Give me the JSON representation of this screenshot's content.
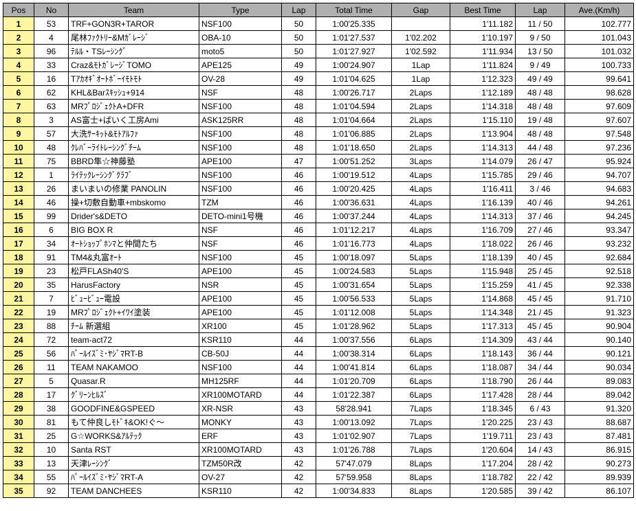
{
  "table": {
    "columns": [
      "Pos",
      "No",
      "Team",
      "Type",
      "Lap",
      "Total Time",
      "Gap",
      "Best Time",
      "Lap",
      "Ave.(Km/h)"
    ],
    "col_align": [
      "center",
      "center",
      "left",
      "left",
      "center",
      "center",
      "center",
      "right",
      "center",
      "right"
    ],
    "col_class": [
      "col-pos",
      "col-no",
      "col-team",
      "col-type",
      "col-lap",
      "col-total",
      "col-gap",
      "col-best",
      "col-lap2",
      "col-ave"
    ],
    "header_bg": "#b0b0b0",
    "pos_bg": "#fff6a0",
    "border_color": "#000000",
    "font_size": 12,
    "rows": [
      [
        "1",
        "53",
        "TRF+GON3R+TAROR",
        "NSF100",
        "50",
        "1:00'25.335",
        "",
        "1'11.182",
        "11 / 50",
        "102.777"
      ],
      [
        "2",
        "4",
        "尾林ﾌｧｸﾄﾘｰ&Mｶﾞﾚｰｼﾞ",
        "OBA-10",
        "50",
        "1:01'27.537",
        "1'02.202",
        "1'10.197",
        "9 / 50",
        "101.043"
      ],
      [
        "3",
        "96",
        "ﾃﾙﾙ・TSﾚｰｼﾝｸﾞ",
        "moto5",
        "50",
        "1:01'27.927",
        "1'02.592",
        "1'11.934",
        "13 / 50",
        "101.032"
      ],
      [
        "4",
        "33",
        "Craz&ﾓﾄｶﾞﾚｰｼﾞTOMO",
        "APE125",
        "49",
        "1:00'24.907",
        "1Lap",
        "1'11.824",
        "9 / 49",
        "100.733"
      ],
      [
        "5",
        "16",
        "Tｱｶｵｷﾞｵｰﾄﾎﾞｰｲﾓﾄﾓﾄ",
        "OV-28",
        "49",
        "1:01'04.625",
        "1Lap",
        "1'12.323",
        "49 / 49",
        "99.641"
      ],
      [
        "6",
        "62",
        "KHL&Barｽｷｯｼｭ+914",
        "NSF",
        "48",
        "1:00'26.717",
        "2Laps",
        "1'12.189",
        "48 / 48",
        "98.628"
      ],
      [
        "7",
        "63",
        "MRﾌﾟﾛｼﾞｪｸﾄA+DFR",
        "NSF100",
        "48",
        "1:01'04.594",
        "2Laps",
        "1'14.318",
        "48 / 48",
        "97.609"
      ],
      [
        "8",
        "3",
        "AS富士+ばいく工房Ami",
        "ASK125RR",
        "48",
        "1:01'04.664",
        "2Laps",
        "1'15.110",
        "19 / 48",
        "97.607"
      ],
      [
        "9",
        "57",
        "大洗ｻｰｷｯﾄ&ﾓﾄｱﾙﾌｧ",
        "NSF100",
        "48",
        "1:01'06.885",
        "2Laps",
        "1'13.904",
        "48 / 48",
        "97.548"
      ],
      [
        "10",
        "48",
        "ｸﾚﾊﾞｰﾗｲﾄﾚｰｼﾝｸﾞﾁｰﾑ",
        "NSF100",
        "48",
        "1:01'18.650",
        "2Laps",
        "1'14.313",
        "44 / 48",
        "97.236"
      ],
      [
        "11",
        "75",
        "BBRD隼☆神藤塾",
        "APE100",
        "47",
        "1:00'51.252",
        "3Laps",
        "1'14.079",
        "26 / 47",
        "95.924"
      ],
      [
        "12",
        "1",
        "ﾗｲﾃｯｸﾚｰｼﾝｸﾞｸﾗﾌﾞ",
        "NSF100",
        "46",
        "1:00'19.512",
        "4Laps",
        "1'15.785",
        "29 / 46",
        "94.707"
      ],
      [
        "13",
        "26",
        "まいまいの修業 PANOLIN",
        "NSF100",
        "46",
        "1:00'20.425",
        "4Laps",
        "1'16.411",
        "3 / 46",
        "94.683"
      ],
      [
        "14",
        "46",
        "操+切敷自動車+mbskomo",
        "TZM",
        "46",
        "1:00'36.631",
        "4Laps",
        "1'16.139",
        "40 / 46",
        "94.261"
      ],
      [
        "15",
        "99",
        "Drider's&DETO",
        "DETO-mini1号機",
        "46",
        "1:00'37.244",
        "4Laps",
        "1'14.313",
        "37 / 46",
        "94.245"
      ],
      [
        "16",
        "6",
        "BIG BOX  R",
        "NSF",
        "46",
        "1:01'12.217",
        "4Laps",
        "1'16.709",
        "27 / 46",
        "93.347"
      ],
      [
        "17",
        "34",
        "ｵｰﾄｼｮｯﾌﾟﾎﾝﾏと仲間たち",
        "NSF",
        "46",
        "1:01'16.773",
        "4Laps",
        "1'18.022",
        "26 / 46",
        "93.232"
      ],
      [
        "18",
        "91",
        "TM4&丸富ｵｰﾄ",
        "NSF100",
        "45",
        "1:00'18.097",
        "5Laps",
        "1'18.139",
        "40 / 45",
        "92.684"
      ],
      [
        "19",
        "23",
        "松戸FLASh40'S",
        "APE100",
        "45",
        "1:00'24.583",
        "5Laps",
        "1'15.948",
        "25 / 45",
        "92.518"
      ],
      [
        "20",
        "35",
        "HarusFactory",
        "NSR",
        "45",
        "1:00'31.654",
        "5Laps",
        "1'15.259",
        "41 / 45",
        "92.338"
      ],
      [
        "21",
        "7",
        "ﾋﾞｭｰﾋﾞｭｰ電設",
        "APE100",
        "45",
        "1:00'56.533",
        "5Laps",
        "1'14.868",
        "45 / 45",
        "91.710"
      ],
      [
        "22",
        "19",
        "MRﾌﾟﾛｼﾞｪｸﾄ+ｲﾜｲ塗装",
        "APE100",
        "45",
        "1:01'12.008",
        "5Laps",
        "1'14.348",
        "21 / 45",
        "91.323"
      ],
      [
        "23",
        "88",
        "ﾁｰﾑ 新選組",
        "XR100",
        "45",
        "1:01'28.962",
        "5Laps",
        "1'17.313",
        "45 / 45",
        "90.904"
      ],
      [
        "24",
        "72",
        "team-act72",
        "KSR110",
        "44",
        "1:00'37.556",
        "6Laps",
        "1'14.309",
        "43 / 44",
        "90.140"
      ],
      [
        "25",
        "56",
        "ﾊﾟｰﾙｲｽﾞﾐ･ﾔｼﾞﾏRT-B",
        "CB-50J",
        "44",
        "1:00'38.314",
        "6Laps",
        "1'18.143",
        "36 / 44",
        "90.121"
      ],
      [
        "26",
        "11",
        "TEAM NAKAMOO",
        "NSF100",
        "44",
        "1:00'41.814",
        "6Laps",
        "1'18.087",
        "34 / 44",
        "90.034"
      ],
      [
        "27",
        "5",
        "Quasar.R",
        "MH125RF",
        "44",
        "1:01'20.709",
        "6Laps",
        "1'18.790",
        "26 / 44",
        "89.083"
      ],
      [
        "28",
        "17",
        "ｸﾞﾘｰﾝﾋﾙｽﾞ",
        "XR100MOTARD",
        "44",
        "1:01'22.387",
        "6Laps",
        "1'17.428",
        "28 / 44",
        "89.042"
      ],
      [
        "29",
        "38",
        "GOODFINE&GSPEED",
        "XR-NSR",
        "43",
        "58'28.941",
        "7Laps",
        "1'18.345",
        "6 / 43",
        "91.320"
      ],
      [
        "30",
        "81",
        "もて仲良しﾓﾄﾞｷ&OK!ぐ～",
        "MONKY",
        "43",
        "1:00'13.092",
        "7Laps",
        "1'20.225",
        "23 / 43",
        "88.687"
      ],
      [
        "31",
        "25",
        "G☆WORKS&ｱﾙﾃｯｸ",
        "ERF",
        "43",
        "1:01'02.907",
        "7Laps",
        "1'19.711",
        "23 / 43",
        "87.481"
      ],
      [
        "32",
        "10",
        "Santa RST",
        "XR100MOTARD",
        "43",
        "1:01'26.788",
        "7Laps",
        "1'20.604",
        "14 / 43",
        "86.915"
      ],
      [
        "33",
        "13",
        "天津ﾚｰｼﾝｸﾞ",
        "TZM50R改",
        "42",
        "57'47.079",
        "8Laps",
        "1'17.204",
        "28 / 42",
        "90.273"
      ],
      [
        "34",
        "55",
        "ﾊﾟｰﾙｲｽﾞﾐ･ﾔｼﾞﾏRT-A",
        "OV-27",
        "42",
        "57'59.958",
        "8Laps",
        "1'18.782",
        "22 / 42",
        "89.939"
      ],
      [
        "35",
        "92",
        "TEAM DANCHEES",
        "KSR110",
        "42",
        "1:00'34.833",
        "8Laps",
        "1'20.585",
        "39 / 42",
        "86.107"
      ]
    ]
  }
}
